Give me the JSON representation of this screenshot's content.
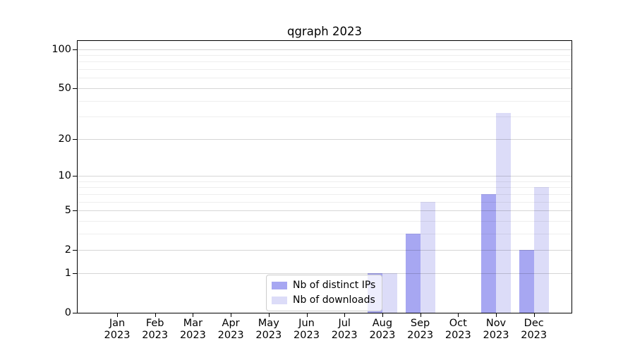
{
  "chart_data": {
    "type": "bar",
    "title": "qgraph 2023",
    "categories": [
      {
        "month": "Jan",
        "year": "2023"
      },
      {
        "month": "Feb",
        "year": "2023"
      },
      {
        "month": "Mar",
        "year": "2023"
      },
      {
        "month": "Apr",
        "year": "2023"
      },
      {
        "month": "May",
        "year": "2023"
      },
      {
        "month": "Jun",
        "year": "2023"
      },
      {
        "month": "Jul",
        "year": "2023"
      },
      {
        "month": "Aug",
        "year": "2023"
      },
      {
        "month": "Sep",
        "year": "2023"
      },
      {
        "month": "Oct",
        "year": "2023"
      },
      {
        "month": "Nov",
        "year": "2023"
      },
      {
        "month": "Dec",
        "year": "2023"
      }
    ],
    "series": [
      {
        "name": "Nb of distinct IPs",
        "color": "#a7a7f2",
        "values": [
          0,
          0,
          0,
          0,
          0,
          0,
          0,
          1,
          3,
          0,
          7,
          2
        ]
      },
      {
        "name": "Nb of downloads",
        "color": "#dcdcf8",
        "values": [
          0,
          0,
          0,
          0,
          0,
          0,
          0,
          1,
          6,
          0,
          32,
          8
        ]
      }
    ],
    "yscale": "log1p",
    "ylim": [
      0,
      117
    ],
    "yticks": [
      0,
      1,
      2,
      5,
      10,
      20,
      50,
      100
    ],
    "minor_gridlines": [
      3,
      4,
      6,
      7,
      8,
      9,
      30,
      40,
      60,
      70,
      80,
      90
    ],
    "grid": "horizontal",
    "legend_position": "lower center",
    "colors": {
      "major_grid": "#d6d6d6",
      "minor_grid": "#f0f0f0",
      "spine": "#000000",
      "background": "#ffffff"
    }
  }
}
